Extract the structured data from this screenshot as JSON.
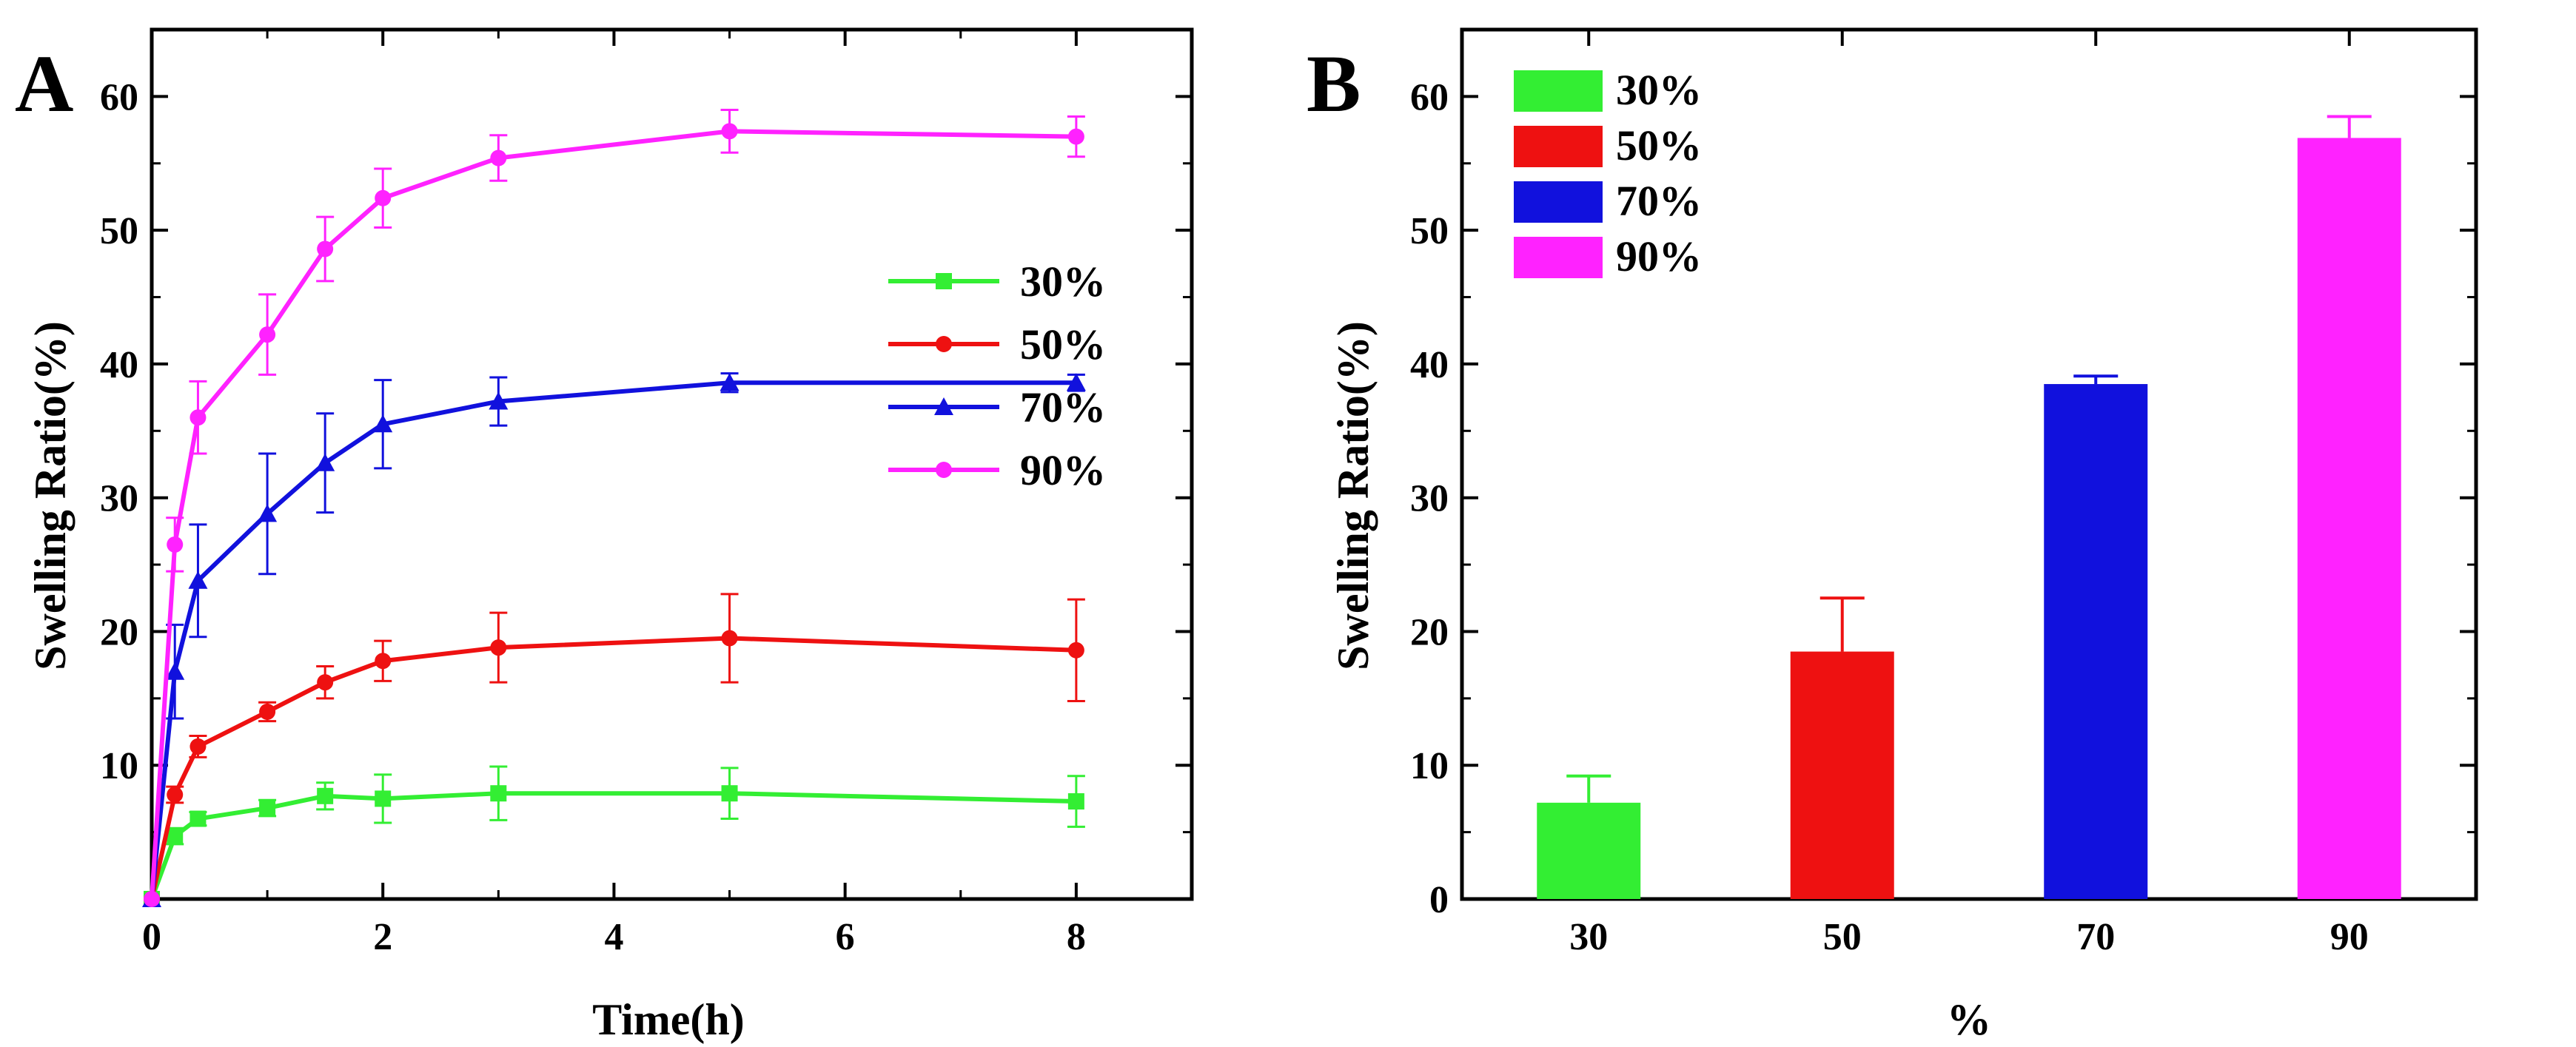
{
  "colors": {
    "c30": "#33ee33",
    "c50": "#ee1111",
    "c70": "#1111dd",
    "c90": "#ff22ff",
    "axis": "#000000"
  },
  "chart_data": [
    {
      "panel_label": "A",
      "type": "line",
      "xlabel": "Time(h)",
      "ylabel": "Swelling Ratio(%)",
      "xlim": [
        0,
        9
      ],
      "ylim": [
        0,
        65
      ],
      "xticks": [
        0,
        2,
        4,
        6,
        8
      ],
      "yticks": [
        10,
        20,
        30,
        40,
        50,
        60
      ],
      "x": [
        0,
        0.2,
        0.4,
        1,
        1.5,
        2,
        3,
        5,
        8
      ],
      "legend_position": "top-right",
      "series": [
        {
          "name": "30%",
          "color_key": "c30",
          "values": [
            0,
            4.7,
            6.0,
            6.8,
            7.7,
            7.5,
            7.9,
            7.9,
            7.3
          ],
          "errors": [
            0,
            0.6,
            0.5,
            0.6,
            1.0,
            1.8,
            2.0,
            1.9,
            1.9
          ]
        },
        {
          "name": "50%",
          "color_key": "c50",
          "values": [
            0,
            7.8,
            11.4,
            14.0,
            16.2,
            17.8,
            18.8,
            19.5,
            18.6
          ],
          "errors": [
            0,
            0.6,
            0.8,
            0.7,
            1.2,
            1.5,
            2.6,
            3.3,
            3.8
          ]
        },
        {
          "name": "70%",
          "color_key": "c70",
          "values": [
            0,
            17.0,
            23.8,
            28.8,
            32.6,
            35.5,
            37.2,
            38.6,
            38.6
          ],
          "errors": [
            0,
            3.5,
            4.2,
            4.5,
            3.7,
            3.3,
            1.8,
            0.7,
            0.6
          ]
        },
        {
          "name": "90%",
          "color_key": "c90",
          "values": [
            0,
            26.5,
            36.0,
            42.2,
            48.6,
            52.4,
            55.4,
            57.4,
            57.0
          ],
          "errors": [
            0,
            2.0,
            2.7,
            3.0,
            2.4,
            2.2,
            1.7,
            1.6,
            1.5
          ]
        }
      ]
    },
    {
      "panel_label": "B",
      "type": "bar",
      "xlabel": "%",
      "ylabel": "Swelling Ratio(%)",
      "ylim": [
        0,
        65
      ],
      "yticks": [
        0,
        10,
        20,
        30,
        40,
        50,
        60
      ],
      "categories": [
        "30",
        "50",
        "70",
        "90"
      ],
      "legend_labels": [
        "30%",
        "50%",
        "70%",
        "90%"
      ],
      "legend_position": "top-left",
      "values": [
        7.2,
        18.5,
        38.5,
        56.9
      ],
      "errors": [
        2.0,
        4.0,
        0.6,
        1.6
      ],
      "color_keys": [
        "c30",
        "c50",
        "c70",
        "c90"
      ]
    }
  ]
}
